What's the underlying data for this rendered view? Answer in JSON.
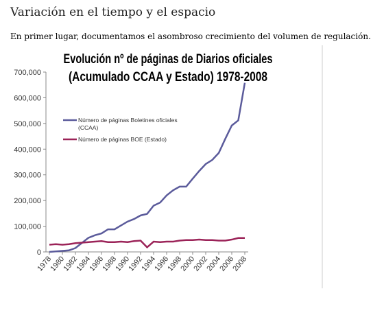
{
  "heading": "Variación en el tiempo y el espacio",
  "paragraph": "En primer lugar, documentamos el asombroso crecimiento del volumen de regulación.",
  "chart_data": {
    "type": "line",
    "title": [
      "Evolución nº de páginas de Diarios oficiales",
      "(Acumulado CCAA y Estado) 1978-2008"
    ],
    "x": [
      1978,
      1979,
      1980,
      1981,
      1982,
      1983,
      1984,
      1985,
      1986,
      1987,
      1988,
      1989,
      1990,
      1991,
      1992,
      1993,
      1994,
      1995,
      1996,
      1997,
      1998,
      1999,
      2000,
      2001,
      2002,
      2003,
      2004,
      2005,
      2006,
      2007,
      2008
    ],
    "series": [
      {
        "name": "Número de páginas Boletines oficiales (CCAA)",
        "color": "#5b5b9b",
        "values": [
          0,
          2000,
          4000,
          6000,
          15000,
          35000,
          55000,
          65000,
          72000,
          88000,
          88000,
          103000,
          118000,
          128000,
          142000,
          148000,
          180000,
          192000,
          220000,
          240000,
          254000,
          254000,
          285000,
          315000,
          342000,
          358000,
          385000,
          440000,
          492000,
          512000,
          658000
        ]
      },
      {
        "name": "Número de páginas BOE (Estado)",
        "color": "#9b2358",
        "values": [
          28000,
          30000,
          28000,
          30000,
          34000,
          36000,
          38000,
          40000,
          42000,
          38000,
          38000,
          40000,
          38000,
          42000,
          44000,
          18000,
          40000,
          38000,
          40000,
          40000,
          44000,
          46000,
          46000,
          48000,
          46000,
          46000,
          44000,
          44000,
          48000,
          54000,
          54000
        ]
      }
    ],
    "xlim": [
      1978,
      2008
    ],
    "xticks": [
      1978,
      1980,
      1982,
      1984,
      1986,
      1988,
      1990,
      1992,
      1994,
      1996,
      1998,
      2000,
      2002,
      2004,
      2006,
      2008
    ],
    "ylim": [
      0,
      700000
    ],
    "yticks": [
      0,
      {
        "value": 100000,
        "label": "100,000"
      },
      {
        "value": 200000,
        "label": "200,000"
      },
      {
        "value": 300000,
        "label": "300,000"
      },
      {
        "value": 400000,
        "label": "400,000"
      },
      {
        "value": 500000,
        "label": "500,000"
      },
      {
        "value": 600000,
        "label": "600,000"
      },
      {
        "value": 700000,
        "label": "700,000"
      }
    ]
  }
}
